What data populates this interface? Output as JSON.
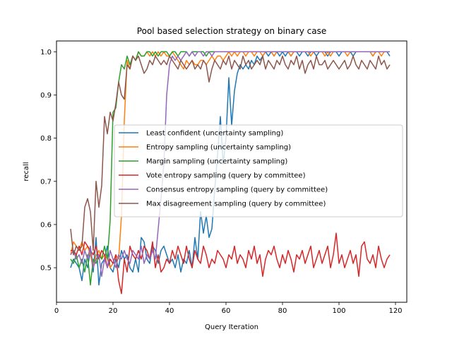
{
  "chart_data": {
    "type": "line",
    "title": "Pool based selection strategy on binary case",
    "xlabel": "Query Iteration",
    "ylabel": "recall",
    "xlim": [
      0,
      124
    ],
    "ylim": [
      0.42,
      1.025
    ],
    "xticks": [
      0,
      20,
      40,
      60,
      80,
      100,
      120
    ],
    "yticks": [
      0.5,
      0.6,
      0.7,
      0.8,
      0.9,
      1.0
    ],
    "grid": false,
    "legend_position": "center-right",
    "x": [
      5,
      6,
      7,
      8,
      9,
      10,
      11,
      12,
      13,
      14,
      15,
      16,
      17,
      18,
      19,
      20,
      21,
      22,
      23,
      24,
      25,
      26,
      27,
      28,
      29,
      30,
      31,
      32,
      33,
      34,
      35,
      36,
      37,
      38,
      39,
      40,
      41,
      42,
      43,
      44,
      45,
      46,
      47,
      48,
      49,
      50,
      51,
      52,
      53,
      54,
      55,
      56,
      57,
      58,
      59,
      60,
      61,
      62,
      63,
      64,
      65,
      66,
      67,
      68,
      69,
      70,
      71,
      72,
      73,
      74,
      75,
      76,
      77,
      78,
      79,
      80,
      81,
      82,
      83,
      84,
      85,
      86,
      87,
      88,
      89,
      90,
      91,
      92,
      93,
      94,
      95,
      96,
      97,
      98,
      99,
      100,
      101,
      102,
      103,
      104,
      105,
      106,
      107,
      108,
      109,
      110,
      111,
      112,
      113,
      114,
      115,
      116,
      117,
      118
    ],
    "series": [
      {
        "name": "Least confident (uncertainty sampling)",
        "color": "#1f77b4",
        "values": [
          0.5,
          0.52,
          0.51,
          0.5,
          0.47,
          0.52,
          0.5,
          0.54,
          0.49,
          0.57,
          0.46,
          0.51,
          0.52,
          0.55,
          0.5,
          0.49,
          0.52,
          0.5,
          0.54,
          0.52,
          0.53,
          0.5,
          0.49,
          0.52,
          0.49,
          0.57,
          0.56,
          0.52,
          0.51,
          0.55,
          0.54,
          0.51,
          0.54,
          0.55,
          0.53,
          0.51,
          0.52,
          0.5,
          0.53,
          0.49,
          0.52,
          0.51,
          0.54,
          0.5,
          0.57,
          0.52,
          0.63,
          0.58,
          0.62,
          0.57,
          0.59,
          0.68,
          0.76,
          0.85,
          0.74,
          0.8,
          0.94,
          0.83,
          0.91,
          0.95,
          0.97,
          0.96,
          0.97,
          0.96,
          0.98,
          0.97,
          0.99,
          0.98,
          0.99,
          1.0,
          0.99,
          1.0,
          0.99,
          1.0,
          0.99,
          1.0,
          0.99,
          1.0,
          0.99,
          1.0,
          1.0,
          0.99,
          1.0,
          1.0,
          0.99,
          1.0,
          1.0,
          0.99,
          1.0,
          1.0,
          1.0,
          0.99,
          1.0,
          1.0,
          1.0,
          0.99,
          1.0,
          1.0,
          1.0,
          1.0,
          0.99,
          1.0,
          1.0,
          1.0,
          1.0,
          1.0,
          1.0,
          0.99,
          1.0,
          1.0,
          1.0,
          1.0,
          1.0,
          0.99
        ]
      },
      {
        "name": "Entropy sampling (uncertainty sampling)",
        "color": "#ff7f0e",
        "values": [
          0.53,
          0.56,
          0.55,
          0.54,
          0.56,
          0.54,
          0.55,
          0.53,
          0.5,
          0.53,
          0.54,
          0.52,
          0.53,
          0.52,
          0.5,
          0.51,
          0.53,
          0.52,
          0.62,
          0.84,
          0.98,
          0.96,
          0.99,
          0.98,
          1.0,
          0.99,
          0.99,
          1.0,
          0.99,
          1.0,
          0.99,
          1.0,
          0.99,
          1.0,
          0.99,
          0.99,
          1.0,
          0.99,
          0.98,
          0.97,
          0.96,
          0.98,
          0.97,
          0.98,
          0.97,
          0.97,
          0.98,
          0.98,
          0.97,
          0.98,
          0.99,
          0.98,
          0.99,
          0.99,
          0.98,
          0.99,
          1.0,
          0.99,
          1.0,
          0.99,
          1.0,
          1.0,
          0.99,
          1.0,
          1.0,
          0.99,
          1.0,
          1.0,
          0.99,
          1.0,
          1.0,
          1.0,
          0.99,
          1.0,
          1.0,
          1.0,
          1.0,
          1.0,
          0.99,
          1.0,
          1.0,
          1.0,
          1.0,
          1.0,
          1.0,
          0.99,
          1.0,
          1.0,
          1.0,
          1.0,
          0.99,
          1.0,
          0.99,
          1.0,
          1.0,
          1.0,
          1.0,
          1.0,
          0.99,
          1.0,
          1.0,
          1.0,
          1.0,
          1.0,
          1.0,
          1.0,
          1.0,
          0.99,
          1.0,
          1.0,
          0.99,
          1.0,
          1.0,
          1.0
        ]
      },
      {
        "name": "Margin sampling (uncertainty sampling)",
        "color": "#2ca02c",
        "values": [
          0.52,
          0.51,
          0.53,
          0.5,
          0.52,
          0.49,
          0.53,
          0.46,
          0.52,
          0.51,
          0.53,
          0.52,
          0.55,
          0.52,
          0.61,
          0.86,
          0.87,
          0.93,
          0.97,
          0.96,
          0.99,
          0.97,
          0.99,
          0.98,
          1.0,
          0.99,
          0.99,
          1.0,
          1.0,
          0.99,
          1.0,
          0.99,
          1.0,
          1.0,
          1.0,
          0.99,
          1.0,
          1.0,
          0.99,
          1.0,
          1.0,
          1.0,
          0.99,
          1.0,
          1.0,
          1.0,
          1.0,
          1.0,
          0.99,
          1.0,
          1.0,
          1.0,
          1.0,
          1.0,
          1.0,
          1.0,
          1.0,
          1.0,
          1.0,
          1.0,
          1.0,
          1.0,
          1.0,
          1.0,
          1.0,
          1.0,
          1.0,
          1.0,
          1.0,
          1.0,
          1.0,
          1.0,
          1.0,
          1.0,
          1.0,
          1.0,
          1.0,
          1.0,
          1.0,
          1.0,
          1.0,
          1.0,
          1.0,
          1.0,
          1.0,
          1.0,
          1.0,
          1.0,
          1.0,
          1.0,
          1.0,
          1.0,
          1.0,
          1.0,
          1.0,
          1.0,
          1.0,
          1.0,
          1.0,
          1.0,
          1.0,
          1.0,
          1.0,
          1.0,
          1.0,
          1.0,
          1.0,
          1.0,
          1.0,
          1.0,
          1.0,
          1.0,
          1.0,
          1.0
        ]
      },
      {
        "name": "Vote entropy sampling (query by committee)",
        "color": "#d62728",
        "values": [
          0.54,
          0.54,
          0.53,
          0.55,
          0.53,
          0.56,
          0.55,
          0.54,
          0.53,
          0.55,
          0.52,
          0.54,
          0.53,
          0.5,
          0.52,
          0.51,
          0.53,
          0.47,
          0.44,
          0.52,
          0.49,
          0.55,
          0.53,
          0.52,
          0.54,
          0.52,
          0.55,
          0.54,
          0.52,
          0.56,
          0.5,
          0.53,
          0.49,
          0.5,
          0.52,
          0.51,
          0.54,
          0.52,
          0.55,
          0.53,
          0.51,
          0.55,
          0.52,
          0.5,
          0.54,
          0.52,
          0.51,
          0.55,
          0.53,
          0.5,
          0.52,
          0.51,
          0.54,
          0.53,
          0.52,
          0.5,
          0.53,
          0.52,
          0.55,
          0.51,
          0.53,
          0.52,
          0.5,
          0.54,
          0.52,
          0.55,
          0.51,
          0.53,
          0.48,
          0.52,
          0.54,
          0.53,
          0.55,
          0.52,
          0.5,
          0.53,
          0.51,
          0.54,
          0.52,
          0.49,
          0.53,
          0.52,
          0.54,
          0.51,
          0.53,
          0.55,
          0.5,
          0.52,
          0.54,
          0.51,
          0.53,
          0.55,
          0.5,
          0.53,
          0.58,
          0.51,
          0.53,
          0.5,
          0.52,
          0.54,
          0.51,
          0.53,
          0.48,
          0.55,
          0.56,
          0.52,
          0.51,
          0.53,
          0.5,
          0.55,
          0.52,
          0.5,
          0.52,
          0.53
        ]
      },
      {
        "name": "Consensus entropy sampling (query by committee)",
        "color": "#9467bd",
        "values": [
          0.53,
          0.54,
          0.52,
          0.53,
          0.51,
          0.54,
          0.52,
          0.55,
          0.5,
          0.52,
          0.53,
          0.48,
          0.52,
          0.5,
          0.54,
          0.52,
          0.5,
          0.53,
          0.52,
          0.54,
          0.52,
          0.51,
          0.54,
          0.53,
          0.52,
          0.55,
          0.51,
          0.53,
          0.52,
          0.54,
          0.52,
          0.59,
          0.66,
          0.74,
          0.9,
          0.97,
          0.99,
          0.98,
          0.99,
          0.98,
          0.99,
          1.0,
          0.99,
          1.0,
          0.99,
          1.0,
          1.0,
          0.99,
          1.0,
          1.0,
          0.99,
          1.0,
          1.0,
          1.0,
          1.0,
          1.0,
          1.0,
          1.0,
          1.0,
          1.0,
          1.0,
          1.0,
          1.0,
          1.0,
          1.0,
          1.0,
          1.0,
          1.0,
          1.0,
          1.0,
          1.0,
          1.0,
          1.0,
          1.0,
          1.0,
          1.0,
          1.0,
          1.0,
          1.0,
          1.0,
          1.0,
          1.0,
          1.0,
          1.0,
          1.0,
          1.0,
          1.0,
          1.0,
          1.0,
          1.0,
          1.0,
          1.0,
          1.0,
          1.0,
          1.0,
          1.0,
          1.0,
          1.0,
          1.0,
          1.0,
          1.0,
          1.0,
          1.0,
          1.0,
          1.0,
          1.0,
          1.0,
          1.0,
          1.0,
          1.0,
          1.0,
          1.0,
          1.0,
          1.0
        ]
      },
      {
        "name": "Max disagreement sampling (query by committee)",
        "color": "#8c564b",
        "values": [
          0.59,
          0.53,
          0.55,
          0.54,
          0.55,
          0.64,
          0.66,
          0.63,
          0.54,
          0.7,
          0.64,
          0.69,
          0.85,
          0.81,
          0.86,
          0.84,
          0.88,
          0.93,
          0.9,
          0.89,
          0.97,
          0.96,
          0.99,
          0.98,
          0.99,
          0.97,
          0.95,
          0.96,
          0.98,
          0.97,
          0.99,
          0.98,
          0.97,
          0.98,
          0.97,
          0.99,
          0.98,
          0.97,
          0.96,
          0.98,
          0.97,
          0.96,
          0.97,
          0.98,
          0.96,
          0.97,
          0.96,
          0.98,
          0.97,
          0.93,
          0.96,
          0.98,
          0.97,
          0.96,
          0.98,
          0.97,
          0.99,
          0.96,
          0.98,
          0.97,
          0.96,
          0.99,
          0.97,
          0.98,
          0.96,
          0.97,
          0.98,
          0.97,
          0.99,
          0.96,
          0.98,
          0.97,
          0.96,
          0.98,
          0.97,
          0.99,
          0.97,
          0.96,
          0.98,
          0.97,
          0.99,
          0.96,
          0.98,
          0.95,
          0.97,
          0.98,
          0.96,
          0.99,
          0.97,
          0.97,
          0.98,
          0.96,
          0.97,
          0.98,
          0.97,
          0.96,
          0.97,
          0.98,
          0.96,
          0.97,
          0.99,
          0.97,
          0.96,
          0.98,
          0.97,
          0.96,
          0.98,
          0.97,
          0.96,
          0.99,
          0.97,
          0.98,
          0.96,
          0.97
        ]
      }
    ]
  }
}
